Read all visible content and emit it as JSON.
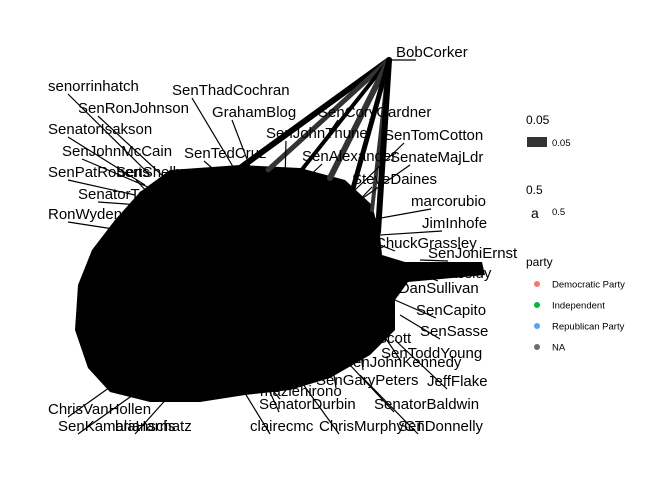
{
  "node_labels": [
    "BobCorker",
    "senorrinhatch",
    "SenThadCochran",
    "SenRonJohnson",
    "GrahamBlog",
    "SenCoryGardner",
    "SenJohnThune",
    "SenTomCotton",
    "SenatorIsakson",
    "SenJohnMcCain",
    "SenTedCruz",
    "SenAlexander",
    "SenateMajLdr",
    "SenPatRoberts",
    "SenShelby",
    "SteveDaines",
    "SenatorTester",
    "marcorubio",
    "JimInhofe",
    "RonWyden",
    "ChuckGrassley",
    "SenJoniErnst",
    "BillCassidy",
    "SenDanSullivan",
    "SenCapito",
    "SenSasse",
    "SenToddYoung",
    "SenJohnKennedy",
    "SenGaryPeters",
    "JeffFlake",
    "SenatorDurbin",
    "SenatorBaldwin",
    "ChrisVanHollen",
    "SenKamalaHarris",
    "brianschatz",
    "clairecmc",
    "ChrisMurphyCT",
    "SenDonnelly",
    "maziehirono",
    "SenatorTimScott"
  ],
  "legend": {
    "edge_width": {
      "title": "0.05",
      "label": "0.05",
      "color": "#333333"
    },
    "label_size": {
      "title": "0.5",
      "glyph": "a",
      "label": "0.5"
    },
    "party": {
      "title": "party",
      "items": [
        {
          "label": "Democratic Party",
          "color": "#F8766D"
        },
        {
          "label": "Independent",
          "color": "#00BA38"
        },
        {
          "label": "Republican Party",
          "color": "#619CFF"
        },
        {
          "label": "NA",
          "color": "#6E6E6E"
        }
      ]
    }
  },
  "colors": {
    "edge": "#000000",
    "edge_dark": "#333333",
    "background": "#ffffff"
  }
}
